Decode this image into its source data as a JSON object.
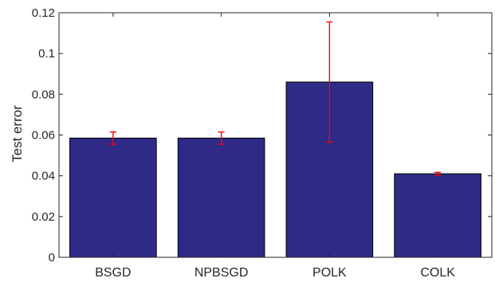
{
  "chart_data": {
    "type": "bar",
    "title": "",
    "xlabel": "",
    "ylabel": "Test error",
    "categories": [
      "BSGD",
      "NPBSGD",
      "POLK",
      "COLK"
    ],
    "values": [
      0.0585,
      0.0585,
      0.086,
      0.041
    ],
    "error_low": [
      0.0555,
      0.0555,
      0.0565,
      0.0403
    ],
    "error_high": [
      0.0615,
      0.0615,
      0.1155,
      0.0417
    ],
    "ylim": [
      0,
      0.12
    ],
    "yticks": [
      0,
      0.02,
      0.04,
      0.06,
      0.08,
      0.1,
      0.12
    ],
    "ytick_labels": [
      "0",
      "0.02",
      "0.04",
      "0.06",
      "0.08",
      "0.1",
      "0.12"
    ],
    "grid": false,
    "legend": "none",
    "bar_color": "#2e2a86",
    "error_color": "#ff0000"
  }
}
